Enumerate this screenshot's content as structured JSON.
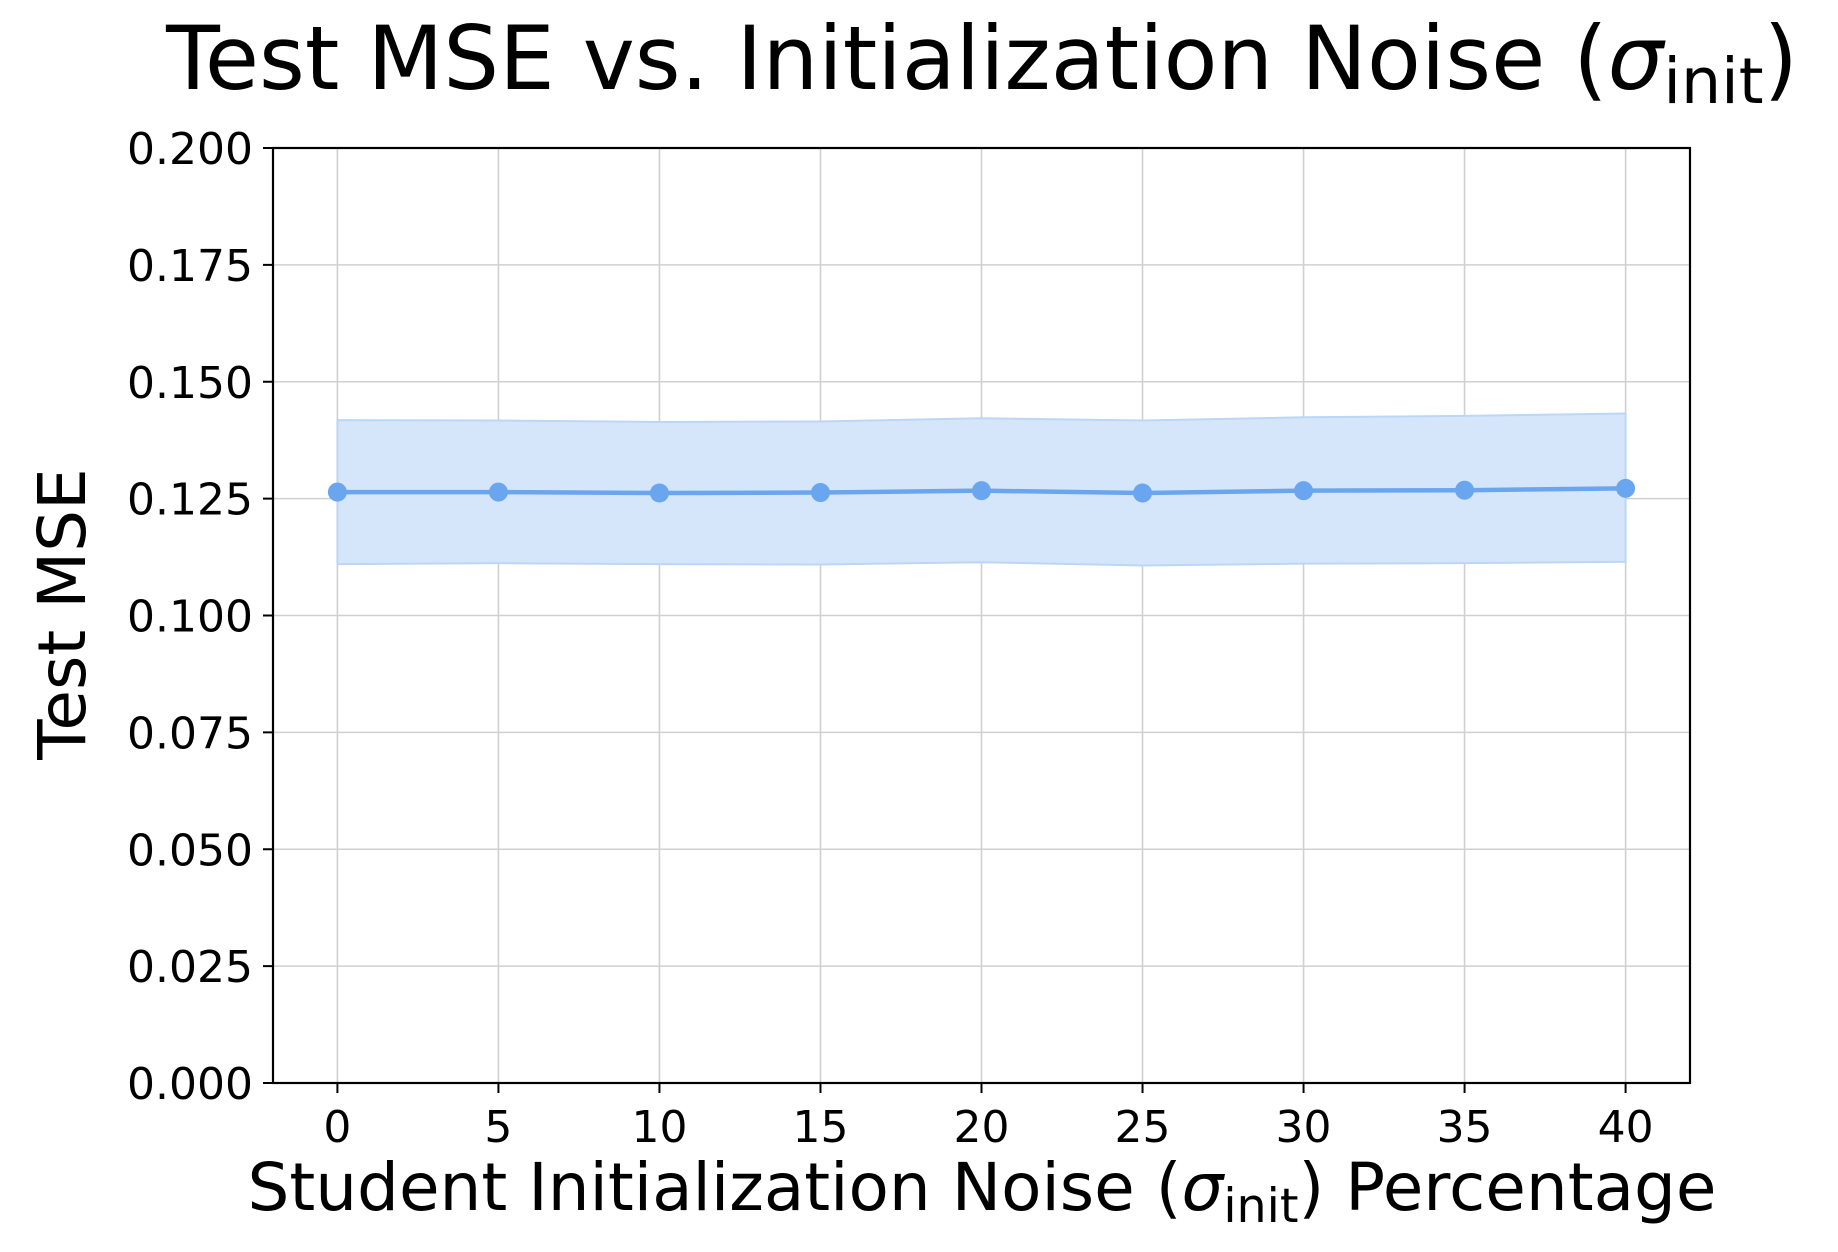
{
  "chart_data": {
    "type": "line",
    "title": {
      "main": "Test MSE vs. Initialization Noise (",
      "symbol": "σ",
      "subscript": "init",
      "suffix": ")"
    },
    "xlabel": {
      "prefix": "Student Initialization Noise (",
      "symbol": "σ",
      "subscript": "init",
      "suffix": ") Percentage"
    },
    "ylabel": "Test MSE",
    "xlim": [
      -2,
      42
    ],
    "ylim": [
      0.0,
      0.2
    ],
    "x_ticks": [
      0,
      5,
      10,
      15,
      20,
      25,
      30,
      35,
      40
    ],
    "x_tick_labels": [
      "0",
      "5",
      "10",
      "15",
      "20",
      "25",
      "30",
      "35",
      "40"
    ],
    "y_ticks": [
      0.0,
      0.025,
      0.05,
      0.075,
      0.1,
      0.125,
      0.15,
      0.175,
      0.2
    ],
    "y_tick_labels": [
      "0.000",
      "0.025",
      "0.050",
      "0.075",
      "0.100",
      "0.125",
      "0.150",
      "0.175",
      "0.200"
    ],
    "grid": true,
    "series": [
      {
        "name": "Test MSE",
        "color": "#6aa6f0",
        "band_color": "#d6e6fa",
        "band_edge_color": "#bcd6f6",
        "x": [
          0,
          5,
          10,
          15,
          20,
          25,
          30,
          35,
          40
        ],
        "y": [
          0.1264,
          0.1264,
          0.1262,
          0.1263,
          0.1267,
          0.1262,
          0.1267,
          0.1268,
          0.1272
        ],
        "lower": [
          0.111,
          0.1112,
          0.111,
          0.1109,
          0.1114,
          0.1107,
          0.1111,
          0.1112,
          0.1115
        ],
        "upper": [
          0.1418,
          0.1417,
          0.1414,
          0.1415,
          0.1422,
          0.1417,
          0.1424,
          0.1427,
          0.1432
        ]
      }
    ]
  }
}
